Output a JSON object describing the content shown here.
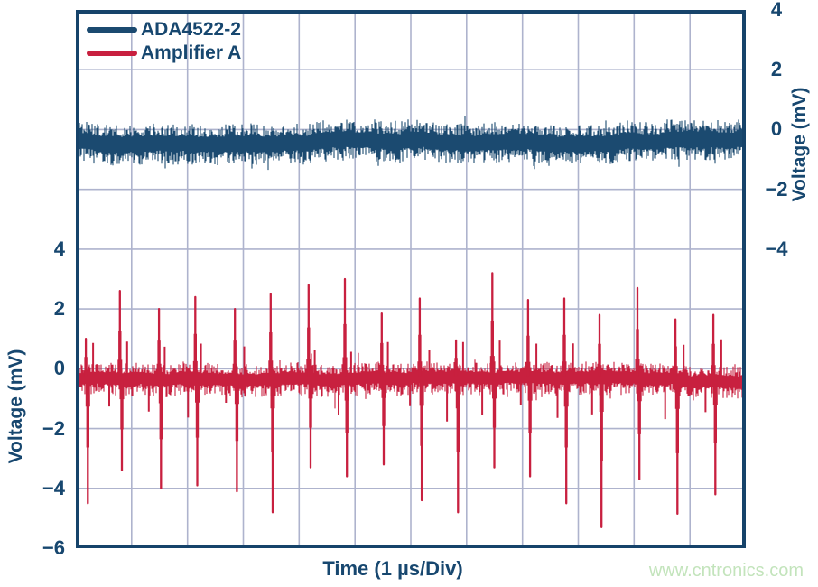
{
  "legend": {
    "items": [
      {
        "label": "ADA4522-2",
        "color": "#1b4a70"
      },
      {
        "label": "Amplifier A",
        "color": "#c8203f"
      }
    ]
  },
  "watermark_text": "www.cntronics.com",
  "colors": {
    "trace_blue": "#1b4a70",
    "trace_red": "#c8203f",
    "grid_line": "#aeb3cd",
    "plot_border": "#16436a",
    "text_navy": "#17476f",
    "watermark_green": "#c3e4bc",
    "background": "#ffffff"
  },
  "chart_data": {
    "type": "line",
    "subtype": "oscilloscope-noise-traces",
    "title": "",
    "xlabel": "Time (1 µs/Div)",
    "x_divisions": 12,
    "time_per_div_us": 1,
    "grid": true,
    "grid_mv_per_div": 2,
    "right_axis": {
      "label": "Voltage (mV)",
      "ticks": [
        4,
        2,
        0,
        -2,
        -4
      ],
      "top_mv": 4,
      "bottom_mv": -14,
      "applies_to": "ADA4522-2"
    },
    "left_axis": {
      "label": "Voltage (mV)",
      "ticks": [
        4,
        2,
        0,
        -2,
        -4,
        -6
      ],
      "top_mv": 12,
      "bottom_mv": -6,
      "applies_to": "Amplifier A"
    },
    "series": [
      {
        "name": "ADA4522-2",
        "color": "#1b4a70",
        "axis": "right",
        "baseline_mv": -0.4,
        "noise_pp_mv": 1.5,
        "character": "uniform broadband noise band, no EMI spikes",
        "spikes": []
      },
      {
        "name": "Amplifier A",
        "color": "#c8203f",
        "axis": "left",
        "baseline_mv": -0.35,
        "noise_pp_mv": 1.1,
        "character": "EMI rectification spike pairs roughly every 0.65 µs",
        "spikes": [
          {
            "t_us": 0.18,
            "up_mv": 1.0,
            "down_mv": -4.5
          },
          {
            "t_us": 0.79,
            "up_mv": 2.6,
            "down_mv": -3.4
          },
          {
            "t_us": 1.49,
            "up_mv": 2.0,
            "down_mv": -4.0
          },
          {
            "t_us": 2.14,
            "up_mv": 2.4,
            "down_mv": -3.9
          },
          {
            "t_us": 2.85,
            "up_mv": 2.0,
            "down_mv": -4.1
          },
          {
            "t_us": 3.49,
            "up_mv": 2.5,
            "down_mv": -4.8
          },
          {
            "t_us": 4.17,
            "up_mv": 2.8,
            "down_mv": -3.3
          },
          {
            "t_us": 4.82,
            "up_mv": 3.0,
            "down_mv": -3.6
          },
          {
            "t_us": 5.48,
            "up_mv": 1.85,
            "down_mv": -3.2
          },
          {
            "t_us": 6.16,
            "up_mv": 2.35,
            "down_mv": -4.4
          },
          {
            "t_us": 6.81,
            "up_mv": 0.95,
            "down_mv": -4.8
          },
          {
            "t_us": 7.46,
            "up_mv": 3.2,
            "down_mv": -3.3
          },
          {
            "t_us": 8.1,
            "up_mv": 2.3,
            "down_mv": -3.6
          },
          {
            "t_us": 8.75,
            "up_mv": 2.35,
            "down_mv": -4.5
          },
          {
            "t_us": 9.38,
            "up_mv": 1.8,
            "down_mv": -5.3
          },
          {
            "t_us": 10.06,
            "up_mv": 2.7,
            "down_mv": -3.7
          },
          {
            "t_us": 10.74,
            "up_mv": 1.65,
            "down_mv": -4.85
          },
          {
            "t_us": 11.42,
            "up_mv": 1.8,
            "down_mv": -4.2
          }
        ]
      }
    ]
  }
}
